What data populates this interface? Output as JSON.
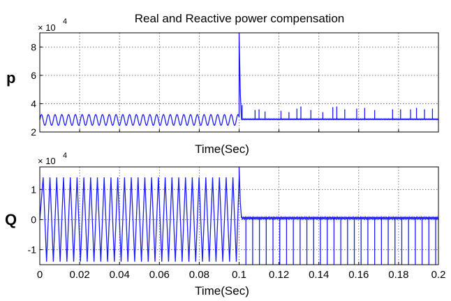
{
  "figure_title": "Real and Reactive power compensation",
  "colors": {
    "trace": "#1a1aff",
    "grid": "#555555",
    "axis": "#000000",
    "background": "#ffffff"
  },
  "chart_data": [
    {
      "type": "line",
      "title": "Real and Reactive power compensation",
      "ylabel": "p",
      "xlabel": "Time(Sec)",
      "exponent_label": "× 10",
      "exponent_power": "4",
      "xlim": [
        0,
        0.2
      ],
      "ylim": [
        2,
        9
      ],
      "xticks": [
        0,
        0.02,
        0.04,
        0.06,
        0.08,
        0.1,
        0.12,
        0.14,
        0.16,
        0.18,
        0.2
      ],
      "xtick_labels": [],
      "yticks": [
        2,
        4,
        6,
        8
      ],
      "ytick_labels": [
        "2",
        "4",
        "6",
        "8"
      ],
      "grid": true,
      "series": [
        {
          "color": "#1a1aff",
          "segments": [
            {
              "t_start": 0,
              "t_end": 0.1,
              "kind": "sine",
              "mean": 2.85,
              "amplitude": 0.38,
              "period": 0.0034
            },
            {
              "t_start": 0.1,
              "t_end": 0.2,
              "kind": "flat",
              "level": 2.9
            }
          ],
          "transient": {
            "t": 0.1,
            "peak": 9.0
          },
          "spikes": [
            {
              "t": 0.1015,
              "y": 3.9
            },
            {
              "t": 0.108,
              "y": 3.55
            },
            {
              "t": 0.11,
              "y": 3.6
            },
            {
              "t": 0.113,
              "y": 3.45
            },
            {
              "t": 0.121,
              "y": 3.5
            },
            {
              "t": 0.125,
              "y": 3.4
            },
            {
              "t": 0.129,
              "y": 3.65
            },
            {
              "t": 0.131,
              "y": 3.8
            },
            {
              "t": 0.136,
              "y": 3.55
            },
            {
              "t": 0.142,
              "y": 3.4
            },
            {
              "t": 0.147,
              "y": 3.75
            },
            {
              "t": 0.149,
              "y": 3.8
            },
            {
              "t": 0.153,
              "y": 3.6
            },
            {
              "t": 0.159,
              "y": 3.65
            },
            {
              "t": 0.163,
              "y": 3.7
            },
            {
              "t": 0.168,
              "y": 3.55
            },
            {
              "t": 0.177,
              "y": 3.6
            },
            {
              "t": 0.181,
              "y": 3.6
            },
            {
              "t": 0.186,
              "y": 3.6
            },
            {
              "t": 0.189,
              "y": 3.7
            },
            {
              "t": 0.193,
              "y": 3.6
            },
            {
              "t": 0.197,
              "y": 3.65
            }
          ]
        }
      ]
    },
    {
      "type": "line",
      "ylabel": "Q",
      "xlabel": "Time(Sec)",
      "exponent_label": "× 10",
      "exponent_power": "4",
      "xlim": [
        0,
        0.2
      ],
      "ylim": [
        -1.5,
        1.75
      ],
      "xticks": [
        0,
        0.02,
        0.04,
        0.06,
        0.08,
        0.1,
        0.12,
        0.14,
        0.16,
        0.18,
        0.2
      ],
      "xtick_labels": [
        "0",
        "0.02",
        "0.04",
        "0.06",
        "0.08",
        "0.1",
        "0.12",
        "0.14",
        "0.16",
        "0.18",
        "0.2"
      ],
      "yticks": [
        -1,
        0,
        1
      ],
      "ytick_labels": [
        "-1",
        "0",
        "1"
      ],
      "grid": true,
      "series": [
        {
          "color": "#1a1aff",
          "segments": [
            {
              "t_start": 0,
              "t_end": 0.1,
              "kind": "oscillation",
              "max": 1.4,
              "min": -1.4,
              "period": 0.0034
            },
            {
              "t_start": 0.1,
              "t_end": 0.2,
              "kind": "flat",
              "level": 0.05
            }
          ],
          "transient": {
            "t": 0.1,
            "peak": 1.75
          },
          "dips_after": {
            "t_start": 0.1,
            "t_end": 0.2,
            "period": 0.0034,
            "min": -1.5
          }
        }
      ]
    }
  ]
}
